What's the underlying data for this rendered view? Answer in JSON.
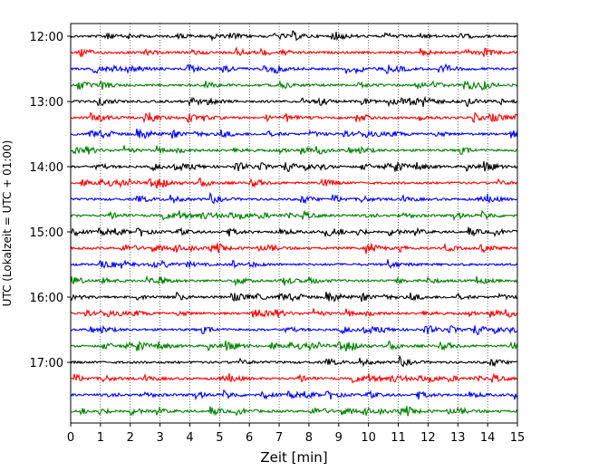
{
  "chart_data": {
    "type": "line",
    "title": "",
    "xlabel": "Zeit  [min]",
    "ylabel": "UTC (Lokalzeit = UTC + 01:00)",
    "xlim": [
      0,
      15
    ],
    "x_ticks": [
      0,
      1,
      2,
      3,
      4,
      5,
      6,
      7,
      8,
      9,
      10,
      11,
      12,
      13,
      14,
      15
    ],
    "y_tick_labels": [
      "12:00",
      "13:00",
      "14:00",
      "15:00",
      "16:00",
      "17:00"
    ],
    "trace_interval_minutes": 15,
    "trace_start_times": [
      "12:00",
      "12:15",
      "12:30",
      "12:45",
      "13:00",
      "13:15",
      "13:30",
      "13:45",
      "14:00",
      "14:15",
      "14:30",
      "14:45",
      "15:00",
      "15:15",
      "15:30",
      "15:45",
      "16:00",
      "16:15",
      "16:30",
      "16:45",
      "17:00",
      "17:15",
      "17:30",
      "17:45"
    ],
    "trace_colors": [
      "#000000",
      "#ff0000",
      "#0000ff",
      "#008000"
    ],
    "grid": "vertical-dotted"
  }
}
